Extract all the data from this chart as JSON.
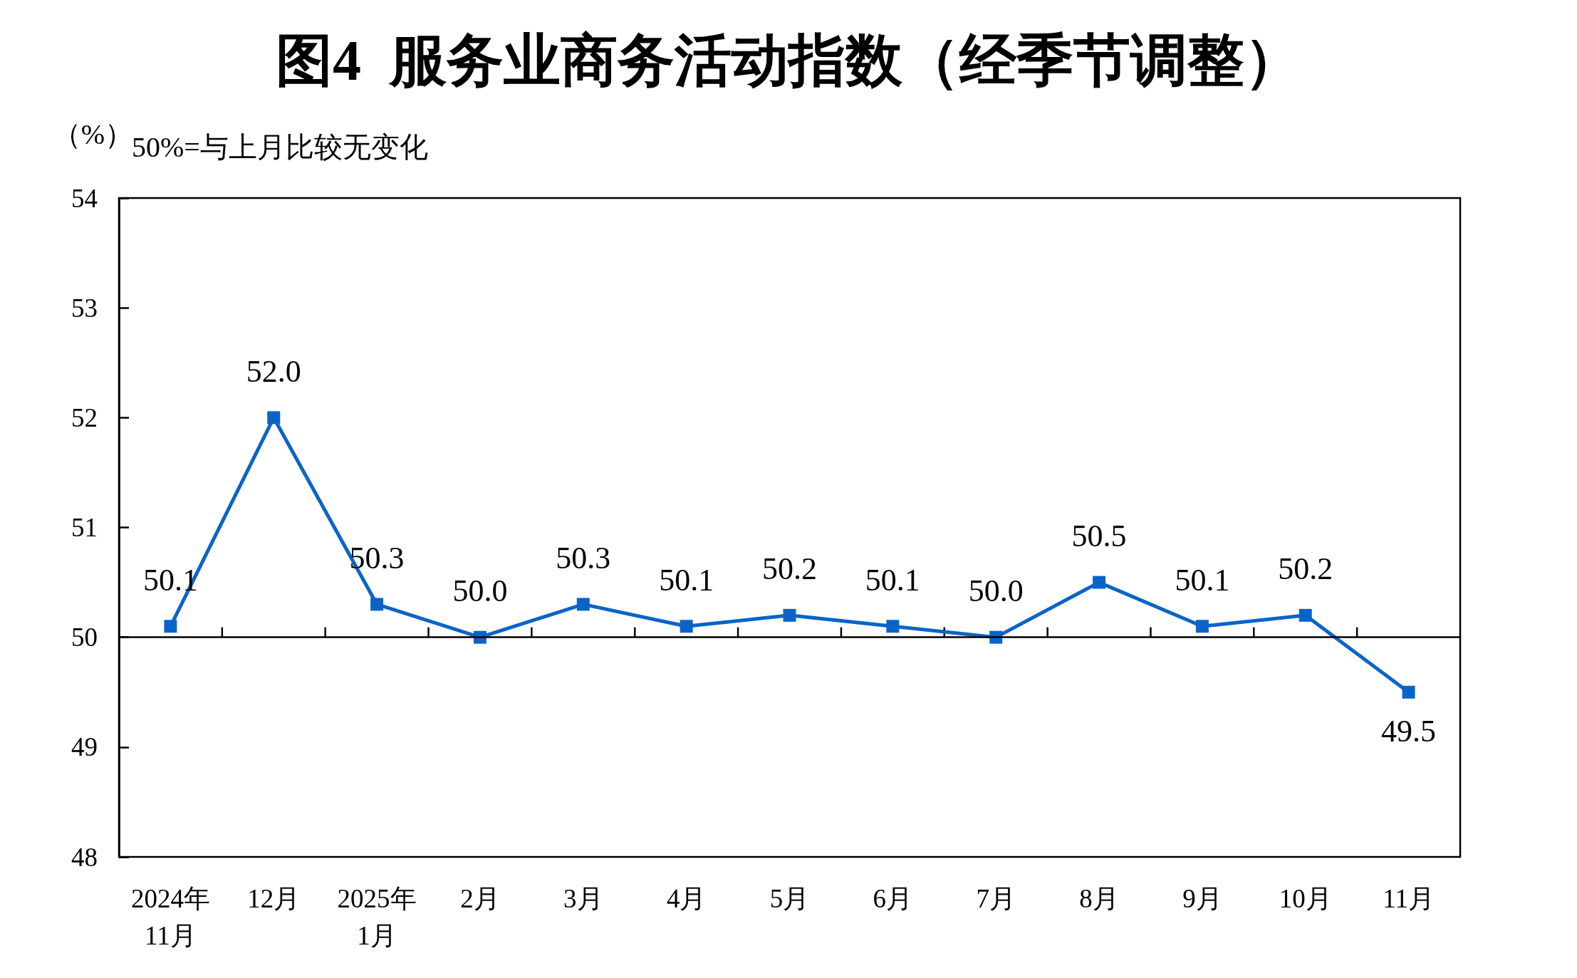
{
  "chart_data": {
    "type": "line",
    "title": "图4  服务业商务活动指数（经季节调整）",
    "ylabel": "（%）",
    "annotations": [
      "50%=与上月比较无变化"
    ],
    "categories": [
      "2024年\n11月",
      "12月",
      "2025年\n1月",
      "2月",
      "3月",
      "4月",
      "5月",
      "6月",
      "7月",
      "8月",
      "9月",
      "10月",
      "11月"
    ],
    "series": [
      {
        "color": "#0a64c8",
        "values": [
          50.1,
          52.0,
          50.3,
          50.0,
          50.3,
          50.1,
          50.2,
          50.1,
          50.0,
          50.5,
          50.1,
          50.2,
          49.5
        ],
        "value_labels": [
          "50.1",
          "52.0",
          "50.3",
          "50.0",
          "50.3",
          "50.1",
          "50.2",
          "50.1",
          "50.0",
          "50.5",
          "50.1",
          "50.2",
          "49.5"
        ]
      }
    ],
    "ylim": [
      48,
      54
    ],
    "yticks": [
      48,
      49,
      50,
      51,
      52,
      53,
      54
    ],
    "ref_lines": [
      {
        "axis": "y",
        "value": 50,
        "color": "#000000"
      }
    ],
    "marker": "square",
    "line_style": "solid",
    "grid": false
  }
}
